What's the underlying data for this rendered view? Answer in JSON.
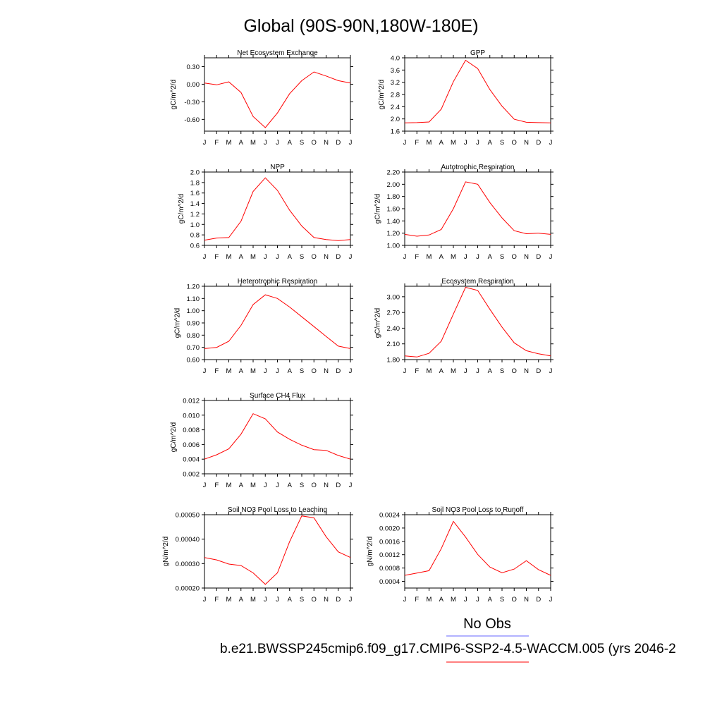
{
  "figure": {
    "title": "Global (90S-90N,180W-180E)",
    "legend": [
      {
        "label": "No Obs",
        "color": "#6666ff"
      },
      {
        "label": "b.e21.BWSSP245cmip6.f09_g17.CMIP6-SSP2-4.5-WACCM.005 (yrs 2046-2",
        "color": "#ff0000"
      }
    ]
  },
  "chart_data": [
    {
      "type": "line",
      "title": "Net Ecosystem Exchange",
      "ylabel": "gC/m^2/d",
      "xlabel": "",
      "x": [
        "J",
        "F",
        "M",
        "A",
        "M",
        "J",
        "J",
        "A",
        "S",
        "O",
        "N",
        "D",
        "J"
      ],
      "ylim": [
        -0.8,
        0.45
      ],
      "yticks": [
        "0.30",
        "0.00",
        "-0.30",
        "-0.60"
      ],
      "ytick_values": [
        0.3,
        0.0,
        -0.3,
        -0.6
      ],
      "series": [
        {
          "values": [
            0.02,
            -0.01,
            0.04,
            -0.14,
            -0.55,
            -0.74,
            -0.49,
            -0.16,
            0.06,
            0.21,
            0.14,
            0.06,
            0.02
          ]
        }
      ]
    },
    {
      "type": "line",
      "title": "GPP",
      "ylabel": "gC/m^2/d",
      "xlabel": "",
      "x": [
        "J",
        "F",
        "M",
        "A",
        "M",
        "J",
        "J",
        "A",
        "S",
        "O",
        "N",
        "D",
        "J"
      ],
      "ylim": [
        1.6,
        4.0
      ],
      "yticks": [
        "4.0",
        "3.6",
        "3.2",
        "2.8",
        "2.4",
        "2.0",
        "1.6"
      ],
      "ytick_values": [
        4.0,
        3.6,
        3.2,
        2.8,
        2.4,
        2.0,
        1.6
      ],
      "series": [
        {
          "values": [
            1.87,
            1.88,
            1.9,
            2.32,
            3.22,
            3.92,
            3.65,
            2.96,
            2.42,
            1.99,
            1.89,
            1.88,
            1.87
          ]
        }
      ]
    },
    {
      "type": "line",
      "title": "NPP",
      "ylabel": "gC/m^2/d",
      "xlabel": "",
      "x": [
        "J",
        "F",
        "M",
        "A",
        "M",
        "J",
        "J",
        "A",
        "S",
        "O",
        "N",
        "D",
        "J"
      ],
      "ylim": [
        0.6,
        2.0
      ],
      "yticks": [
        "2.0",
        "1.8",
        "1.6",
        "1.4",
        "1.2",
        "1.0",
        "0.8",
        "0.6"
      ],
      "ytick_values": [
        2.0,
        1.8,
        1.6,
        1.4,
        1.2,
        1.0,
        0.8,
        0.6
      ],
      "series": [
        {
          "values": [
            0.7,
            0.74,
            0.75,
            1.06,
            1.63,
            1.89,
            1.65,
            1.27,
            0.97,
            0.75,
            0.71,
            0.69,
            0.71
          ]
        }
      ]
    },
    {
      "type": "line",
      "title": "Autotrophic Respiration",
      "ylabel": "gC/m^2/d",
      "xlabel": "",
      "x": [
        "J",
        "F",
        "M",
        "A",
        "M",
        "J",
        "J",
        "A",
        "S",
        "O",
        "N",
        "D",
        "J"
      ],
      "ylim": [
        1.0,
        2.2
      ],
      "yticks": [
        "2.20",
        "2.00",
        "1.80",
        "1.60",
        "1.40",
        "1.20",
        "1.00"
      ],
      "ytick_values": [
        2.2,
        2.0,
        1.8,
        1.6,
        1.4,
        1.2,
        1.0
      ],
      "series": [
        {
          "values": [
            1.18,
            1.15,
            1.17,
            1.26,
            1.6,
            2.04,
            2.0,
            1.7,
            1.45,
            1.24,
            1.19,
            1.2,
            1.18
          ]
        }
      ]
    },
    {
      "type": "line",
      "title": "Heterotrophic Respiration",
      "ylabel": "gC/m^2/d",
      "xlabel": "",
      "x": [
        "J",
        "F",
        "M",
        "A",
        "M",
        "J",
        "J",
        "A",
        "S",
        "O",
        "N",
        "D",
        "J"
      ],
      "ylim": [
        0.6,
        1.2
      ],
      "yticks": [
        "1.20",
        "1.10",
        "1.00",
        "0.90",
        "0.80",
        "0.70",
        "0.60"
      ],
      "ytick_values": [
        1.2,
        1.1,
        1.0,
        0.9,
        0.8,
        0.7,
        0.6
      ],
      "series": [
        {
          "values": [
            0.69,
            0.7,
            0.75,
            0.88,
            1.05,
            1.13,
            1.1,
            1.03,
            0.95,
            0.87,
            0.79,
            0.71,
            0.69
          ]
        }
      ]
    },
    {
      "type": "line",
      "title": "Ecosystem Respiration",
      "ylabel": "gC/m^2/d",
      "xlabel": "",
      "x": [
        "J",
        "F",
        "M",
        "A",
        "M",
        "J",
        "J",
        "A",
        "S",
        "O",
        "N",
        "D",
        "J"
      ],
      "ylim": [
        1.8,
        3.2
      ],
      "yticks": [
        "3.00",
        "2.70",
        "2.40",
        "2.10",
        "1.80"
      ],
      "ytick_values": [
        3.0,
        2.7,
        2.4,
        2.1,
        1.8
      ],
      "series": [
        {
          "values": [
            1.87,
            1.85,
            1.92,
            2.15,
            2.67,
            3.18,
            3.12,
            2.76,
            2.42,
            2.12,
            1.97,
            1.91,
            1.87
          ]
        }
      ]
    },
    {
      "type": "line",
      "title": "Surface CH4 Flux",
      "ylabel": "gC/m^2/d",
      "xlabel": "",
      "x": [
        "J",
        "F",
        "M",
        "A",
        "M",
        "J",
        "J",
        "A",
        "S",
        "O",
        "N",
        "D",
        "J"
      ],
      "ylim": [
        0.002,
        0.012
      ],
      "yticks": [
        "0.012",
        "0.010",
        "0.008",
        "0.006",
        "0.004",
        "0.002"
      ],
      "ytick_values": [
        0.012,
        0.01,
        0.008,
        0.006,
        0.004,
        0.002
      ],
      "series": [
        {
          "values": [
            0.004,
            0.0046,
            0.0054,
            0.0074,
            0.0102,
            0.0095,
            0.0077,
            0.0067,
            0.0059,
            0.0053,
            0.0052,
            0.0045,
            0.004
          ]
        }
      ]
    },
    {
      "type": "line",
      "title": "Soil NO3 Pool Loss to Leaching",
      "ylabel": "gN/m^2/d",
      "xlabel": "",
      "x": [
        "J",
        "F",
        "M",
        "A",
        "M",
        "J",
        "J",
        "A",
        "S",
        "O",
        "N",
        "D",
        "J"
      ],
      "ylim": [
        0.0002,
        0.0005
      ],
      "yticks": [
        "0.00050",
        "0.00040",
        "0.00030",
        "0.00020"
      ],
      "ytick_values": [
        0.0005,
        0.0004,
        0.0003,
        0.0002
      ],
      "series": [
        {
          "values": [
            0.000325,
            0.000315,
            0.000298,
            0.000292,
            0.000262,
            0.000215,
            0.000262,
            0.00039,
            0.000495,
            0.000487,
            0.00041,
            0.000348,
            0.000325
          ]
        }
      ]
    },
    {
      "type": "line",
      "title": "Soil NO3 Pool Loss to Runoff",
      "ylabel": "gN/m^2/d",
      "xlabel": "",
      "x": [
        "J",
        "F",
        "M",
        "A",
        "M",
        "J",
        "J",
        "A",
        "S",
        "O",
        "N",
        "D",
        "J"
      ],
      "ylim": [
        0.0002,
        0.0024
      ],
      "yticks": [
        "0.0024",
        "0.0020",
        "0.0016",
        "0.0012",
        "0.0008",
        "0.0004"
      ],
      "ytick_values": [
        0.0024,
        0.002,
        0.0016,
        0.0012,
        0.0008,
        0.0004
      ],
      "series": [
        {
          "values": [
            0.00058,
            0.00065,
            0.00072,
            0.00138,
            0.0022,
            0.00173,
            0.00121,
            0.00083,
            0.00066,
            0.00077,
            0.00102,
            0.00075,
            0.00058
          ]
        }
      ]
    }
  ]
}
